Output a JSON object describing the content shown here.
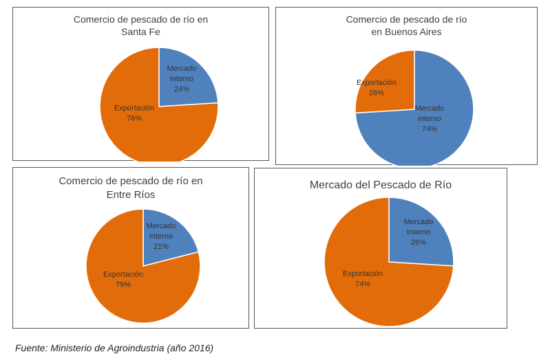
{
  "colors": {
    "exportacion": "#E36C0A",
    "mercado_interno": "#4F81BD",
    "label": "#333333"
  },
  "chart_data": [
    {
      "type": "pie",
      "title_lines": [
        "Comercio de pescado de río en",
        "Santa Fe"
      ],
      "slices": [
        {
          "label_lines": [
            "Mercado",
            "Interno"
          ],
          "pct_text": "24%",
          "value": 24,
          "key": "mercado_interno"
        },
        {
          "label_lines": [
            "Exportación"
          ],
          "pct_text": "76%",
          "value": 76,
          "key": "exportacion"
        }
      ]
    },
    {
      "type": "pie",
      "title_lines": [
        "Comercio de pescado de río",
        "en Buenos Aires"
      ],
      "slices": [
        {
          "label_lines": [
            "Mercado",
            "interno"
          ],
          "pct_text": "74%",
          "value": 74,
          "key": "mercado_interno"
        },
        {
          "label_lines": [
            "Exportación"
          ],
          "pct_text": "26%",
          "value": 26,
          "key": "exportacion"
        }
      ]
    },
    {
      "type": "pie",
      "title_lines": [
        "Comercio de pescado de río en",
        "Entre Ríos"
      ],
      "slices": [
        {
          "label_lines": [
            "Mercado",
            "interno"
          ],
          "pct_text": "21%",
          "value": 21,
          "key": "mercado_interno"
        },
        {
          "label_lines": [
            "Exportación"
          ],
          "pct_text": "79%",
          "value": 79,
          "key": "exportacion"
        }
      ]
    },
    {
      "type": "pie",
      "title_lines": [
        "Mercado del Pescado de Río"
      ],
      "slices": [
        {
          "label_lines": [
            "Mercado",
            "Interno"
          ],
          "pct_text": "26%",
          "value": 26,
          "key": "mercado_interno"
        },
        {
          "label_lines": [
            "Exportación"
          ],
          "pct_text": "74%",
          "value": 74,
          "key": "exportacion"
        }
      ]
    }
  ],
  "source": "Fuente: Ministerio de Agroindustria (año 2016)"
}
